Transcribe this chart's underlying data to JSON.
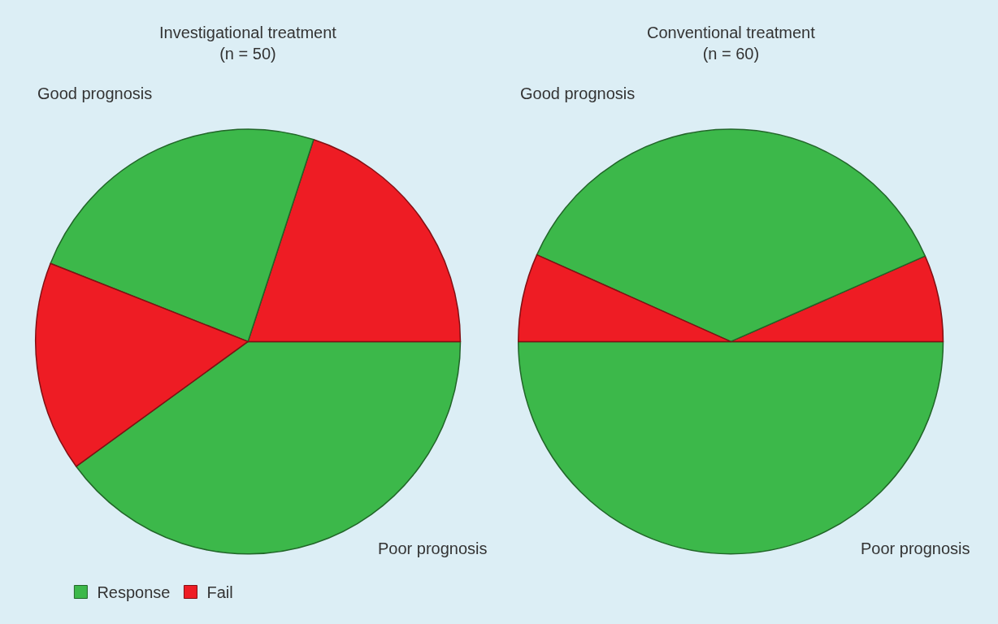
{
  "chart_data": [
    {
      "type": "pie",
      "title": "Investigational treatment\n(n = 50)",
      "categories": [
        "Response",
        "Fail",
        null,
        null
      ],
      "values": [
        40,
        20,
        24,
        16
      ],
      "colors": [
        "#3cb84a",
        "#ee1c24",
        "#3cb84a",
        "#ee1c24"
      ],
      "annotations": [
        "Good prognosis",
        "Poor prognosis"
      ],
      "legend": "bottom left"
    },
    {
      "type": "pie",
      "title": "Conventional treatment\n(n = 60)",
      "categories": [
        null,
        null,
        null,
        null
      ],
      "values": [
        50,
        6.6,
        36.7,
        6.7
      ],
      "colors": [
        "#3cb84a",
        "#ee1c24",
        "#3cb84a",
        "#ee1c24"
      ],
      "annotations": [
        "Good prognosis",
        "Poor prognosis"
      ]
    }
  ]
}
